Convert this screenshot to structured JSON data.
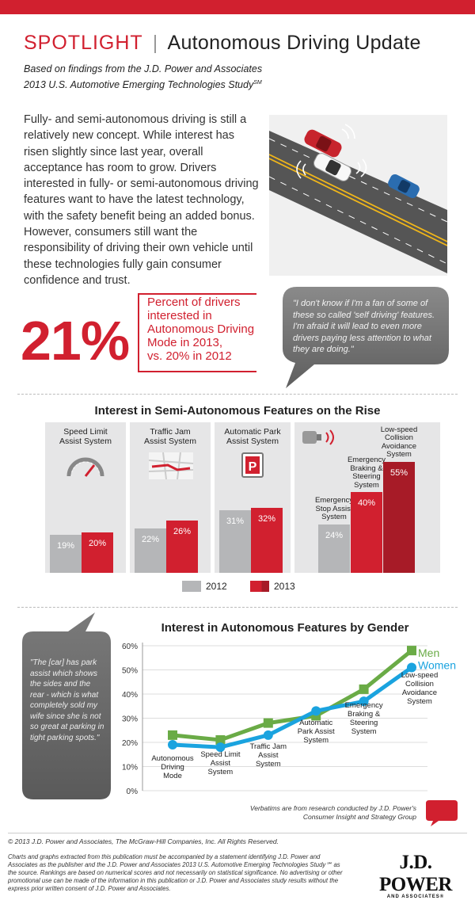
{
  "header": {
    "spotlight": "SPOTLIGHT",
    "separator": "|",
    "title": "Autonomous Driving Update",
    "subtitle_line1": "Based on findings from the J.D. Power and Associates",
    "subtitle_line2": "2013 U.S. Automotive Emerging Technologies Study",
    "subtitle_sm": "SM"
  },
  "intro_text": "Fully- and semi-autonomous driving is still a relatively new concept. While interest has risen slightly since last year, overall acceptance has room to grow. Drivers interested in fully- or semi-autonomous driving features want to have the latest technology, with the safety benefit being an added bonus. However, consumers still want the responsibility of driving their own vehicle until these technologies fully gain consumer confidence and trust.",
  "stat": {
    "value": "21%",
    "lines": [
      "Percent of drivers",
      "interested in",
      "Autonomous Driving",
      "Mode in 2013,",
      "vs. 20% in 2012"
    ]
  },
  "quote1": "\"I don't know if I'm a fan of some of these so called 'self driving' features. I'm afraid it will lead to even more drivers paying less attention to what they are doing.\"",
  "quote2": "\"The [car] has park assist which shows the sides and the rear - which is what completely sold my wife since she is not so great at parking in tight parking spots.\"",
  "colors": {
    "brand_red": "#d1202f",
    "gray_2012": "#b5b6b8",
    "red_2013": "#d1202f",
    "men": "#6aab46",
    "women": "#1aa3df"
  },
  "icons": [
    "speedometer-icon",
    "traffic-jam-map-icon",
    "parking-sign-icon",
    "collision-sensor-icon",
    "quote-bubble-icon",
    "chat-bubble-icon"
  ],
  "chart_data": [
    {
      "type": "bar",
      "title": "Interest in Semi-Autonomous Features on the Rise",
      "panels": [
        {
          "label": [
            "Speed Limit",
            "Assist System"
          ],
          "values": [
            {
              "year": "2012",
              "value": 19,
              "label": "19%"
            },
            {
              "year": "2013",
              "value": 20,
              "label": "20%"
            }
          ]
        },
        {
          "label": [
            "Traffic Jam",
            "Assist System"
          ],
          "values": [
            {
              "year": "2012",
              "value": 22,
              "label": "22%"
            },
            {
              "year": "2013",
              "value": 26,
              "label": "26%"
            }
          ]
        },
        {
          "label": [
            "Automatic Park",
            "Assist System"
          ],
          "values": [
            {
              "year": "2012",
              "value": 31,
              "label": "31%"
            },
            {
              "year": "2013",
              "value": 32,
              "label": "32%"
            }
          ]
        }
      ],
      "collision_panel": [
        {
          "label": [
            "Emergency",
            "Stop Assist",
            "System"
          ],
          "value": 24,
          "text": "24%"
        },
        {
          "label": [
            "Emergency",
            "Braking &",
            "Steering",
            "System"
          ],
          "value": 40,
          "text": "40%"
        },
        {
          "label": [
            "Low-speed",
            "Collision",
            "Avoidance",
            "System"
          ],
          "value": 55,
          "text": "55%"
        }
      ],
      "legend": [
        "2012",
        "2013"
      ],
      "legend_position": "bottom"
    },
    {
      "type": "line",
      "title": "Interest in Autonomous Features by Gender",
      "categories": [
        [
          "Autonomous",
          "Driving",
          "Mode"
        ],
        [
          "Speed Limit",
          "Assist",
          "System"
        ],
        [
          "Traffic Jam",
          "Assist",
          "System"
        ],
        [
          "Automatic",
          "Park Assist",
          "System"
        ],
        [
          "Emergency",
          "Braking &",
          "Steering",
          "System"
        ],
        [
          "Low-speed",
          "Collision",
          "Avoidance",
          "System"
        ]
      ],
      "series": [
        {
          "name": "Men",
          "values": [
            23,
            21,
            28,
            31,
            42,
            58
          ]
        },
        {
          "name": "Women",
          "values": [
            19,
            18,
            23,
            33,
            37,
            51
          ]
        }
      ],
      "ylim": [
        0,
        60
      ],
      "yticks": [
        "0%",
        "10%",
        "20%",
        "30%",
        "40%",
        "50%",
        "60%"
      ],
      "grid": true,
      "legend_position": "right"
    }
  ],
  "verbatim_note": [
    "Verbatims are from research conducted by J.D. Power's",
    "Consumer Insight and Strategy Group"
  ],
  "footer": {
    "copyright": "© 2013 J.D. Power and Associates, The McGraw-Hill Companies, Inc. All Rights Reserved.",
    "disclaimer": "Charts and graphs extracted from this publication must be accompanied by a statement identifying J.D. Power and Associates as the publisher and the J.D. Power and Associates 2013 U.S. Automotive Emerging Technologies Study℠ as the source. Rankings are based on numerical scores and not necessarily on statistical significance. No advertising or other promotional use can be made of the information in this publication or J.D. Power and Associates study results without the express prior written consent of J.D. Power and Associates.",
    "logo_main": "J.D. POWER",
    "logo_sub": "AND ASSOCIATES®"
  }
}
